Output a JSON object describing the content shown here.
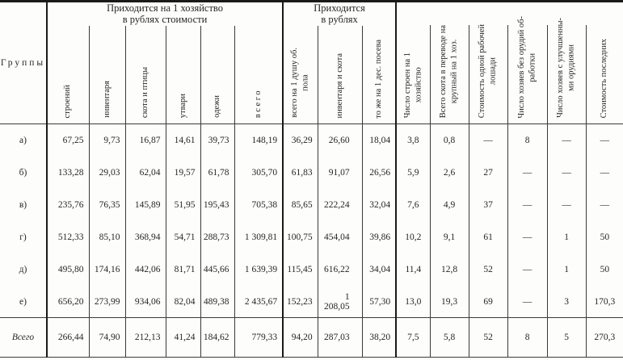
{
  "page": {
    "background_color": "#fdfdfb",
    "text_color": "#262626",
    "rule_color": "#3a3a3a",
    "bold_rule_color": "#1a1a1a"
  },
  "table": {
    "corner_label": "Группы",
    "group1_label": "Приходится на 1 хозяйство\nв рублях стоимости",
    "group2_label": "Приходится\nв рублях",
    "columns": [
      "строений",
      "инвентаря",
      "скота и птицы",
      "утвари",
      "одежи",
      "всего",
      "всего на 1 душу об.\nпола",
      "инвентаря и скота",
      "то же на 1 дес. посева",
      "Число строен на 1\nхозяйство",
      "Всего скота в переводе на\nкрупный на 1 хоз.",
      "Стоимость одной рабочей\nлошади",
      "Число хозяев без орудий об-\nработки",
      "Число хозяев с улучшенны-\nми орудиями",
      "Стоимость последних"
    ],
    "rows": [
      {
        "label": "а)",
        "values": [
          "67,25",
          "9,73",
          "16,87",
          "14,61",
          "39,73",
          "148,19",
          "36,29",
          "26,60",
          "18,04",
          "3,8",
          "0,8",
          "—",
          "8",
          "—",
          "—"
        ]
      },
      {
        "label": "б)",
        "values": [
          "133,28",
          "29,03",
          "62,04",
          "19,57",
          "61,78",
          "305,70",
          "61,83",
          "91,07",
          "26,56",
          "5,9",
          "2,6",
          "27",
          "—",
          "—",
          "—"
        ]
      },
      {
        "label": "в)",
        "values": [
          "235,76",
          "76,35",
          "145,89",
          "51,95",
          "195,43",
          "705,38",
          "85,65",
          "222,24",
          "32,04",
          "7,6",
          "4,9",
          "37",
          "—",
          "—",
          "—"
        ]
      },
      {
        "label": "г)",
        "values": [
          "512,33",
          "85,10",
          "368,94",
          "54,71",
          "288,73",
          "1 309,81",
          "100,75",
          "454,04",
          "39,86",
          "10,2",
          "9,1",
          "61",
          "—",
          "1",
          "50"
        ]
      },
      {
        "label": "д)",
        "values": [
          "495,80",
          "174,16",
          "442,06",
          "81,71",
          "445,66",
          "1 639,39",
          "115,45",
          "616,22",
          "34,04",
          "11,4",
          "12,8",
          "52",
          "—",
          "1",
          "50"
        ]
      },
      {
        "label": "е)",
        "values": [
          "656,20",
          "273,99",
          "934,06",
          "82,04",
          "489,38",
          "2 435,67",
          "152,23",
          "1 208,05",
          "57,30",
          "13,0",
          "19,3",
          "69",
          "—",
          "3",
          "170,3"
        ]
      },
      {
        "label": "Всего",
        "is_total": true,
        "values": [
          "266,44",
          "74,90",
          "212,13",
          "41,24",
          "184,62",
          "779,33",
          "94,20",
          "287,03",
          "38,20",
          "7,5",
          "5,8",
          "52",
          "8",
          "5",
          "270,3"
        ]
      }
    ]
  }
}
